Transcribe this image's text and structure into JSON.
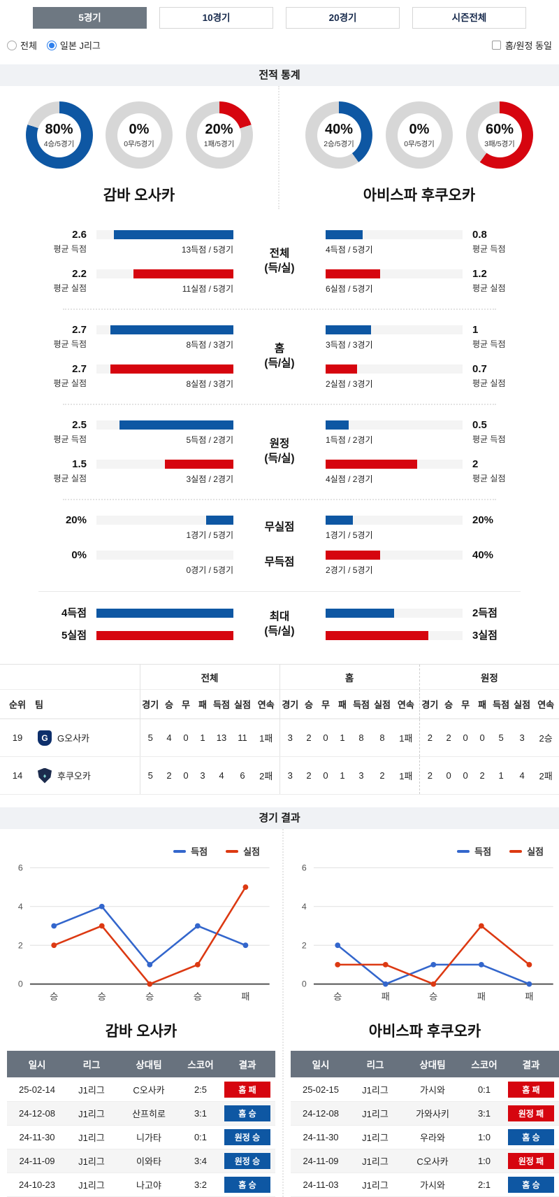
{
  "colors": {
    "blue": "#0e57a3",
    "red": "#d6050f",
    "donut_gray": "#d7d7d7",
    "line_blue": "#3366cc",
    "line_red": "#dc3912"
  },
  "tabs": [
    {
      "label": "5경기",
      "selected": true
    },
    {
      "label": "10경기",
      "selected": false
    },
    {
      "label": "20경기",
      "selected": false
    },
    {
      "label": "시즌전체",
      "selected": false
    }
  ],
  "filters": {
    "radios": [
      {
        "label": "전체",
        "checked": false
      },
      {
        "label": "일본 J리그",
        "checked": true
      }
    ],
    "checkbox": {
      "label": "홈/원정 동일",
      "checked": false
    }
  },
  "sections": {
    "stats_title": "전적 통계",
    "results_title": "경기 결과"
  },
  "teams": {
    "home": {
      "name": "감바 오사카",
      "donuts": [
        {
          "pct": "80%",
          "label": "4승/5경기",
          "color": "blue",
          "value": 80
        },
        {
          "pct": "0%",
          "label": "0무/5경기",
          "color": "gray",
          "value": 0
        },
        {
          "pct": "20%",
          "label": "1패/5경기",
          "color": "red",
          "value": 20
        }
      ]
    },
    "away": {
      "name": "아비스파 후쿠오카",
      "donuts": [
        {
          "pct": "40%",
          "label": "2승/5경기",
          "color": "blue",
          "value": 40
        },
        {
          "pct": "0%",
          "label": "0무/5경기",
          "color": "gray",
          "value": 0
        },
        {
          "pct": "60%",
          "label": "3패/5경기",
          "color": "red",
          "value": 60
        }
      ]
    }
  },
  "compare": {
    "groups": [
      {
        "label": [
          "전체",
          "(득/실)"
        ],
        "divider_after": "dotted",
        "compact": false,
        "rows": [
          {
            "color": "blue",
            "left_value": "2.6",
            "left_sub": "평균 득점",
            "left_pct": 87,
            "left_text": "13득점 / 5경기",
            "right_pct": 27,
            "right_text": "4득점 / 5경기",
            "right_value": "0.8",
            "right_sub": "평균 득점"
          },
          {
            "color": "red",
            "left_value": "2.2",
            "left_sub": "평균 실점",
            "left_pct": 73,
            "left_text": "11실점 / 5경기",
            "right_pct": 40,
            "right_text": "6실점 / 5경기",
            "right_value": "1.2",
            "right_sub": "평균 실점"
          }
        ]
      },
      {
        "label": [
          "홈",
          "(득/실)"
        ],
        "divider_after": "dotted",
        "compact": false,
        "rows": [
          {
            "color": "blue",
            "left_value": "2.7",
            "left_sub": "평균 득점",
            "left_pct": 90,
            "left_text": "8득점 / 3경기",
            "right_pct": 33,
            "right_text": "3득점 / 3경기",
            "right_value": "1",
            "right_sub": "평균 득점"
          },
          {
            "color": "red",
            "left_value": "2.7",
            "left_sub": "평균 실점",
            "left_pct": 90,
            "left_text": "8실점 / 3경기",
            "right_pct": 23,
            "right_text": "2실점 / 3경기",
            "right_value": "0.7",
            "right_sub": "평균 실점"
          }
        ]
      },
      {
        "label": [
          "원정",
          "(득/실)"
        ],
        "divider_after": "dotted",
        "compact": false,
        "rows": [
          {
            "color": "blue",
            "left_value": "2.5",
            "left_sub": "평균 득점",
            "left_pct": 83,
            "left_text": "5득점 / 2경기",
            "right_pct": 17,
            "right_text": "1득점 / 2경기",
            "right_value": "0.5",
            "right_sub": "평균 득점"
          },
          {
            "color": "red",
            "left_value": "1.5",
            "left_sub": "평균 실점",
            "left_pct": 50,
            "left_text": "3실점 / 2경기",
            "right_pct": 67,
            "right_text": "4실점 / 2경기",
            "right_value": "2",
            "right_sub": "평균 실점"
          }
        ]
      },
      {
        "label": [
          "무실점"
        ],
        "divider_after": "none",
        "compact": false,
        "rows": [
          {
            "color": "blue",
            "left_value": "20%",
            "left_sub": "",
            "left_pct": 20,
            "left_text": "1경기 / 5경기",
            "right_pct": 20,
            "right_text": "1경기 / 5경기",
            "right_value": "20%",
            "right_sub": ""
          }
        ]
      },
      {
        "label": [
          "무득점"
        ],
        "divider_after": "solid",
        "compact": false,
        "rows": [
          {
            "color": "red",
            "left_value": "0%",
            "left_sub": "",
            "left_pct": 0,
            "left_text": "0경기 / 5경기",
            "right_pct": 40,
            "right_text": "2경기 / 5경기",
            "right_value": "40%",
            "right_sub": ""
          }
        ]
      },
      {
        "label": [
          "최대",
          "(득/실)"
        ],
        "divider_after": "none",
        "compact": true,
        "rows": [
          {
            "color": "blue",
            "left_value": "4득점",
            "left_sub": "",
            "left_pct": 100,
            "left_text": "",
            "right_pct": 50,
            "right_text": "",
            "right_value": "2득점",
            "right_sub": ""
          },
          {
            "color": "red",
            "left_value": "5실점",
            "left_sub": "",
            "left_pct": 100,
            "left_text": "",
            "right_pct": 75,
            "right_text": "",
            "right_value": "3실점",
            "right_sub": ""
          }
        ]
      }
    ]
  },
  "standings": {
    "first_cols": [
      "순위",
      "팀"
    ],
    "group_labels": [
      "전체",
      "홈",
      "원정"
    ],
    "sub_cols": [
      "경기",
      "승",
      "무",
      "패",
      "득점",
      "실점",
      "연속"
    ],
    "rows": [
      {
        "rank": "19",
        "team": "G오사카",
        "logo": "gamba",
        "logo_text": "G",
        "all": [
          "5",
          "4",
          "0",
          "1",
          "13",
          "11",
          "1패"
        ],
        "home": [
          "3",
          "2",
          "0",
          "1",
          "8",
          "8",
          "1패"
        ],
        "away": [
          "2",
          "2",
          "0",
          "0",
          "5",
          "3",
          "2승"
        ]
      },
      {
        "rank": "14",
        "team": "후쿠오카",
        "logo": "avispa",
        "logo_text": "♦",
        "all": [
          "5",
          "2",
          "0",
          "3",
          "4",
          "6",
          "2패"
        ],
        "home": [
          "3",
          "2",
          "0",
          "1",
          "3",
          "2",
          "1패"
        ],
        "away": [
          "2",
          "0",
          "0",
          "2",
          "1",
          "4",
          "2패"
        ]
      }
    ]
  },
  "chart_data": [
    {
      "type": "line",
      "title": "감바 오사카",
      "categories": [
        "승",
        "승",
        "승",
        "승",
        "패"
      ],
      "series": [
        {
          "name": "득점",
          "color": "#3366cc",
          "values": [
            3,
            4,
            1,
            3,
            2
          ]
        },
        {
          "name": "실점",
          "color": "#dc3912",
          "values": [
            2,
            3,
            0,
            1,
            5
          ]
        }
      ],
      "ylim": [
        0,
        6
      ],
      "yticks": [
        0,
        2,
        4,
        6
      ],
      "grid": true,
      "legend_position": "top-right"
    },
    {
      "type": "line",
      "title": "아비스파 후쿠오카",
      "categories": [
        "승",
        "패",
        "승",
        "패",
        "패"
      ],
      "series": [
        {
          "name": "득점",
          "color": "#3366cc",
          "values": [
            2,
            0,
            1,
            1,
            0
          ]
        },
        {
          "name": "실점",
          "color": "#dc3912",
          "values": [
            1,
            1,
            0,
            3,
            1
          ]
        }
      ],
      "ylim": [
        0,
        6
      ],
      "yticks": [
        0,
        2,
        4,
        6
      ],
      "grid": true,
      "legend_position": "top-right"
    }
  ],
  "match_section": {
    "tables": [
      {
        "team": "감바 오사카",
        "headers": [
          "일시",
          "리그",
          "상대팀",
          "스코어",
          "결과"
        ],
        "rows": [
          {
            "date": "25-02-14",
            "league": "J1리그",
            "opponent": "C오사카",
            "score": "2:5",
            "result": "홈 패",
            "win": false
          },
          {
            "date": "24-12-08",
            "league": "J1리그",
            "opponent": "산프히로",
            "score": "3:1",
            "result": "홈 승",
            "win": true
          },
          {
            "date": "24-11-30",
            "league": "J1리그",
            "opponent": "니가타",
            "score": "0:1",
            "result": "원정 승",
            "win": true
          },
          {
            "date": "24-11-09",
            "league": "J1리그",
            "opponent": "이와타",
            "score": "3:4",
            "result": "원정 승",
            "win": true
          },
          {
            "date": "24-10-23",
            "league": "J1리그",
            "opponent": "나고야",
            "score": "3:2",
            "result": "홈 승",
            "win": true
          }
        ]
      },
      {
        "team": "아비스파 후쿠오카",
        "headers": [
          "일시",
          "리그",
          "상대팀",
          "스코어",
          "결과"
        ],
        "rows": [
          {
            "date": "25-02-15",
            "league": "J1리그",
            "opponent": "가시와",
            "score": "0:1",
            "result": "홈 패",
            "win": false
          },
          {
            "date": "24-12-08",
            "league": "J1리그",
            "opponent": "가와사키",
            "score": "3:1",
            "result": "원정 패",
            "win": false
          },
          {
            "date": "24-11-30",
            "league": "J1리그",
            "opponent": "우라와",
            "score": "1:0",
            "result": "홈 승",
            "win": true
          },
          {
            "date": "24-11-09",
            "league": "J1리그",
            "opponent": "C오사카",
            "score": "1:0",
            "result": "원정 패",
            "win": false
          },
          {
            "date": "24-11-03",
            "league": "J1리그",
            "opponent": "가시와",
            "score": "2:1",
            "result": "홈 승",
            "win": true
          }
        ]
      }
    ]
  }
}
